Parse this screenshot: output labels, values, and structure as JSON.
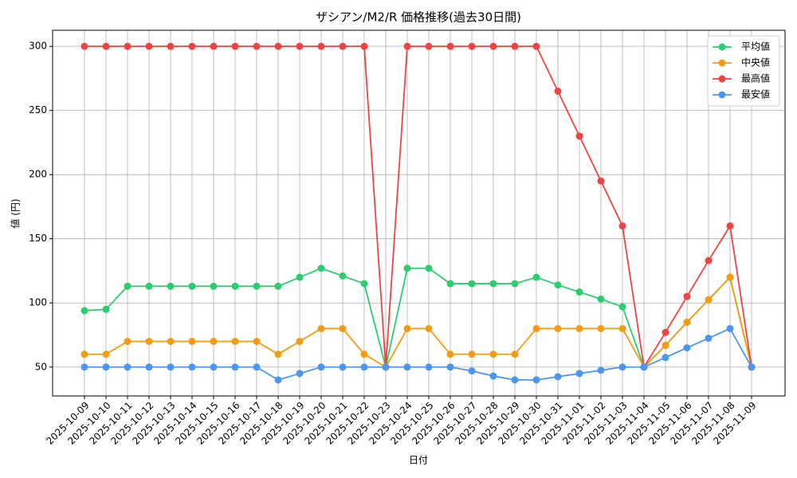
{
  "chart_data": {
    "type": "line",
    "title": "ザシアン/M2/R 価格推移(過去30日間)",
    "x_label": "日付",
    "y_label": "値 (円)",
    "categories": [
      "2025-10-09",
      "2025-10-10",
      "2025-10-11",
      "2025-10-12",
      "2025-10-13",
      "2025-10-14",
      "2025-10-15",
      "2025-10-16",
      "2025-10-17",
      "2025-10-18",
      "2025-10-19",
      "2025-10-20",
      "2025-10-21",
      "2025-10-22",
      "2025-10-23",
      "2025-10-24",
      "2025-10-25",
      "2025-10-26",
      "2025-10-27",
      "2025-10-28",
      "2025-10-29",
      "2025-10-30",
      "2025-10-31",
      "2025-11-01",
      "2025-11-02",
      "2025-11-03",
      "2025-11-04",
      "2025-11-05",
      "2025-11-06",
      "2025-11-07",
      "2025-11-08",
      "2025-11-09"
    ],
    "series": [
      {
        "name": "平均値",
        "color": "#2ecc71",
        "values": [
          94,
          95,
          113,
          113,
          113,
          113,
          113,
          113,
          113,
          113,
          120,
          127,
          121,
          115,
          50,
          127,
          127,
          115,
          115,
          115,
          115,
          120,
          114,
          108.5,
          103,
          97,
          50,
          67,
          85,
          102.5,
          120,
          50
        ]
      },
      {
        "name": "中央値",
        "color": "#f39c12",
        "values": [
          60,
          60,
          70,
          70,
          70,
          70,
          70,
          70,
          70,
          60,
          70,
          80,
          80,
          60,
          50,
          80,
          80,
          60,
          60,
          60,
          60,
          80,
          80,
          80,
          80,
          80,
          50,
          67,
          85,
          102.5,
          120,
          50
        ]
      },
      {
        "name": "最高値",
        "color": "#ef4444",
        "values": [
          300,
          300,
          300,
          300,
          300,
          300,
          300,
          300,
          300,
          300,
          300,
          300,
          300,
          300,
          50,
          300,
          300,
          300,
          300,
          300,
          300,
          300,
          265,
          230,
          195,
          160,
          50,
          77,
          105,
          133,
          160,
          50
        ]
      },
      {
        "name": "最安値",
        "color": "#4b96f3",
        "values": [
          50,
          50,
          50,
          50,
          50,
          50,
          50,
          50,
          50,
          40,
          45,
          50,
          50,
          50,
          50,
          50,
          50,
          50,
          47,
          43,
          40,
          40,
          42.5,
          45,
          47.5,
          50,
          50,
          57.5,
          65,
          72.5,
          80,
          50
        ]
      }
    ],
    "ylim": [
      27.5,
      312.5
    ],
    "yticks": [
      50,
      100,
      150,
      200,
      250,
      300
    ],
    "grid": true,
    "legend": "upper-right"
  }
}
